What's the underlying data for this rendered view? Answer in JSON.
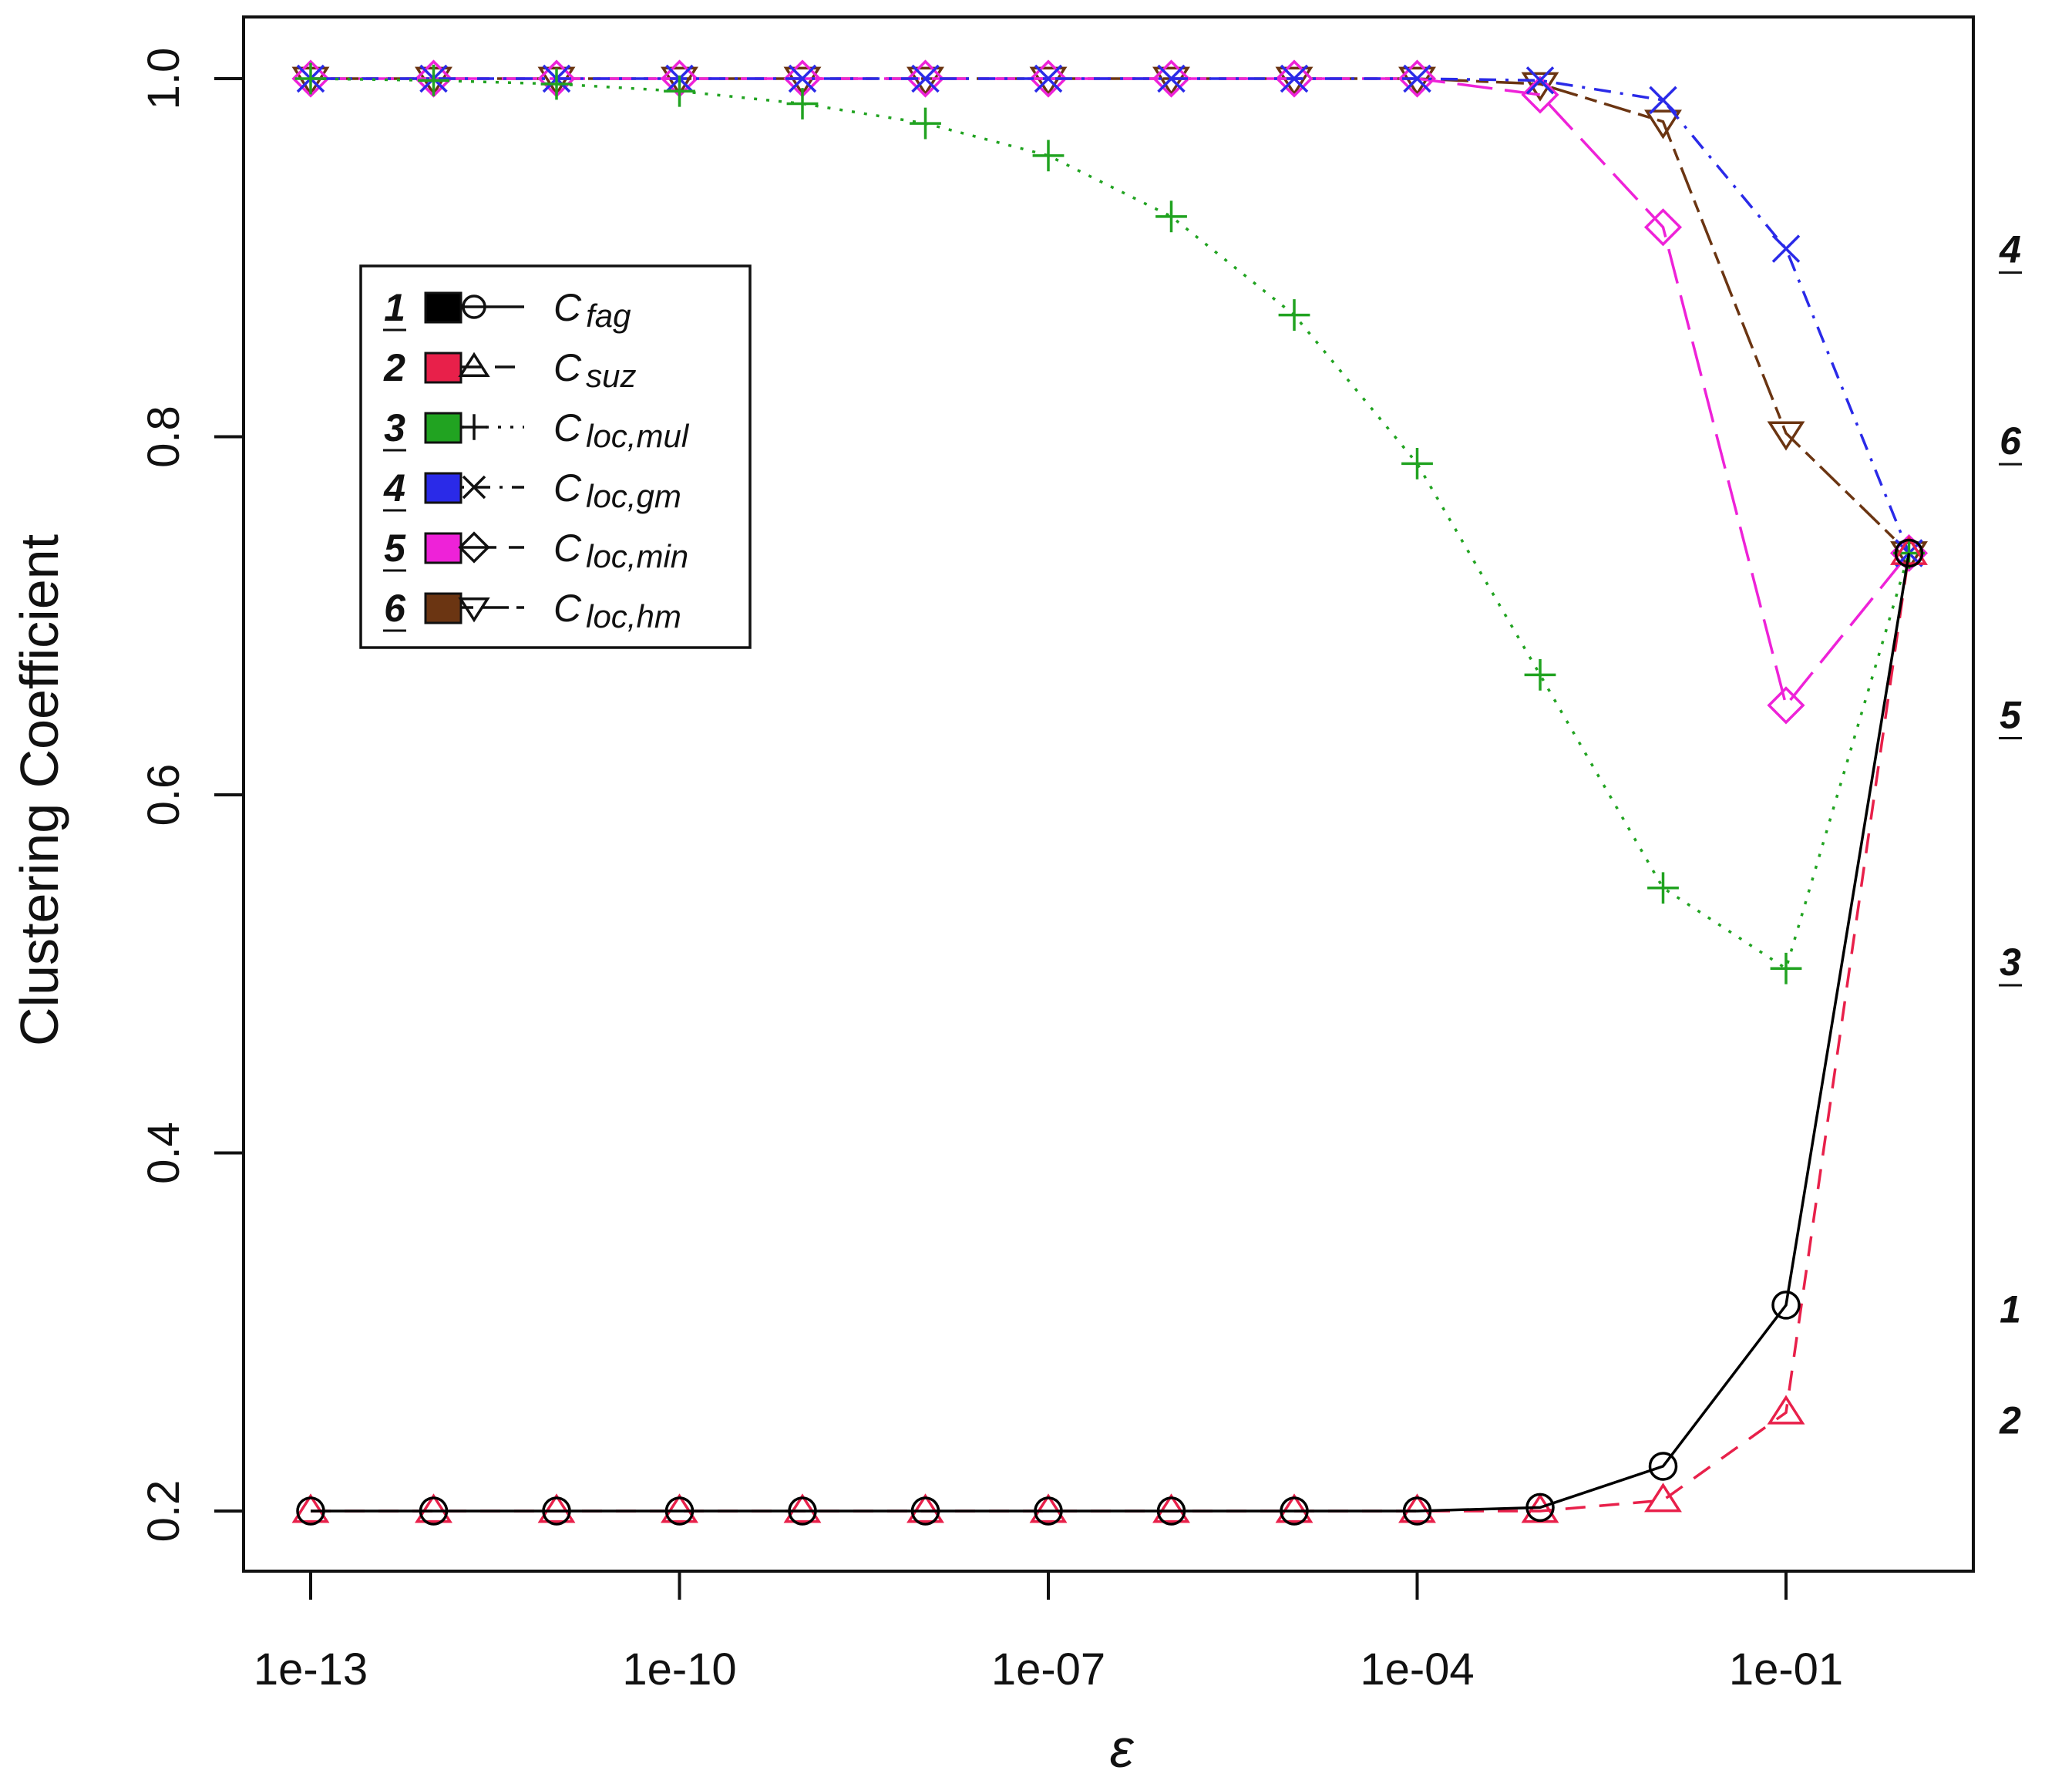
{
  "chart_data": {
    "type": "line",
    "title": "",
    "xlabel": "ε",
    "ylabel": "Clustering Coefficient",
    "x_scale": "log10",
    "x_ticks": [
      "1e-13",
      "1e-10",
      "1e-07",
      "1e-04",
      "1e-01"
    ],
    "y_ticks": [
      "0.2",
      "0.4",
      "0.6",
      "0.8",
      "1.0"
    ],
    "ylim": [
      0.17,
      1.03
    ],
    "grid": false,
    "legend_position": "upper-left",
    "x": [
      1e-13,
      1e-12,
      1e-11,
      1e-10,
      1e-09,
      1e-08,
      1e-07,
      1e-06,
      1e-05,
      0.0001,
      0.001,
      0.01,
      0.1,
      1
    ],
    "series": [
      {
        "id": "1",
        "name": "C",
        "sub": "fag",
        "color": "#000000",
        "marker": "circle",
        "dash": "solid",
        "values": [
          0.2,
          0.2,
          0.2,
          0.2,
          0.2,
          0.2,
          0.2,
          0.2,
          0.2,
          0.2,
          0.202,
          0.225,
          0.315,
          0.735
        ]
      },
      {
        "id": "2",
        "name": "C",
        "sub": "suz",
        "color": "#e8204a",
        "marker": "triangle-up",
        "dash": "dashed",
        "values": [
          0.2,
          0.2,
          0.2,
          0.2,
          0.2,
          0.2,
          0.2,
          0.2,
          0.2,
          0.2,
          0.2,
          0.206,
          0.255,
          0.735
        ]
      },
      {
        "id": "3",
        "name": "C",
        "sub": "loc,mul",
        "color": "#21a321",
        "marker": "plus",
        "dash": "dotted",
        "values": [
          1.0,
          0.999,
          0.997,
          0.993,
          0.986,
          0.975,
          0.957,
          0.923,
          0.868,
          0.785,
          0.667,
          0.548,
          0.503,
          0.735
        ]
      },
      {
        "id": "4",
        "name": "C",
        "sub": "loc,gm",
        "color": "#2a2ae8",
        "marker": "cross",
        "dash": "dotdash",
        "values": [
          1.0,
          1.0,
          1.0,
          1.0,
          1.0,
          1.0,
          1.0,
          1.0,
          1.0,
          1.0,
          0.999,
          0.988,
          0.905,
          0.735
        ]
      },
      {
        "id": "5",
        "name": "C",
        "sub": "loc,min",
        "color": "#ee22d8",
        "marker": "diamond",
        "dash": "longdash",
        "values": [
          1.0,
          1.0,
          1.0,
          1.0,
          1.0,
          1.0,
          1.0,
          1.0,
          1.0,
          1.0,
          0.991,
          0.917,
          0.65,
          0.735
        ]
      },
      {
        "id": "6",
        "name": "C",
        "sub": "loc,hm",
        "color": "#6b3512",
        "marker": "triangle-down",
        "dash": "twodash",
        "values": [
          1.0,
          1.0,
          1.0,
          1.0,
          1.0,
          1.0,
          1.0,
          1.0,
          1.0,
          1.0,
          0.997,
          0.976,
          0.802,
          0.735
        ]
      }
    ],
    "right_labels": [
      {
        "text": "4",
        "y": 0.905
      },
      {
        "text": "6",
        "y": 0.798
      },
      {
        "text": "5",
        "y": 0.645
      },
      {
        "text": "3",
        "y": 0.507
      },
      {
        "text": "1",
        "y": 0.313
      },
      {
        "text": "2",
        "y": 0.251
      }
    ]
  }
}
